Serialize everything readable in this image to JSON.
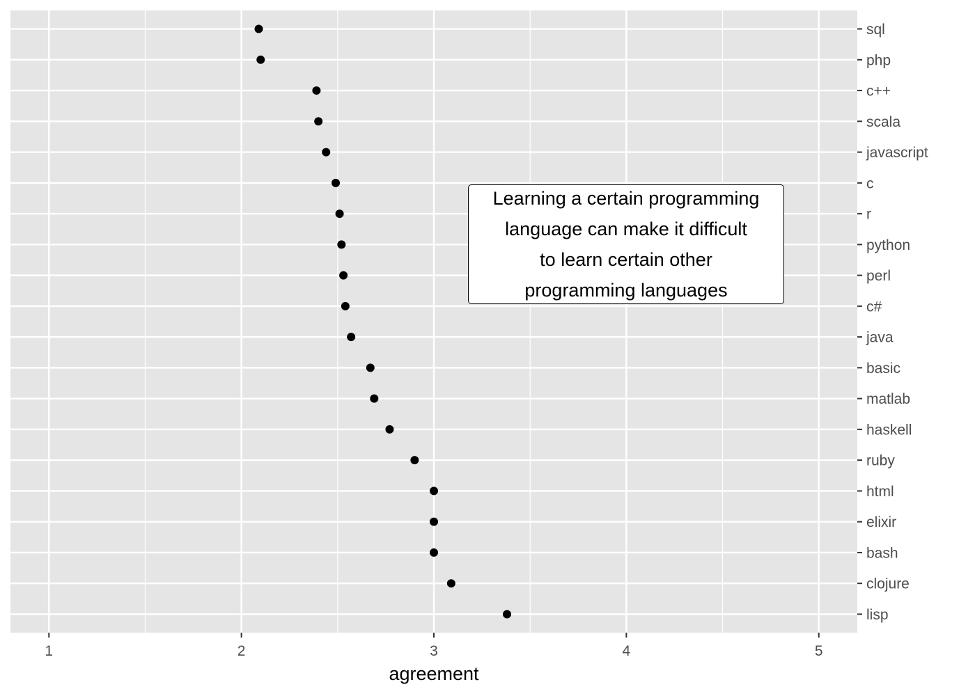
{
  "chart_data": {
    "type": "scatter",
    "title": "",
    "xlabel": "agreement",
    "ylabel": "",
    "xlim": [
      0.8,
      5.2
    ],
    "xticks": [
      "1",
      "2",
      "3",
      "4",
      "5"
    ],
    "y_axis_position": "right",
    "grid": true,
    "categories": [
      "sql",
      "php",
      "c++",
      "scala",
      "javascript",
      "c",
      "r",
      "python",
      "perl",
      "c#",
      "java",
      "basic",
      "matlab",
      "haskell",
      "ruby",
      "html",
      "elixir",
      "bash",
      "clojure",
      "lisp"
    ],
    "values": [
      2.09,
      2.1,
      2.39,
      2.4,
      2.44,
      2.49,
      2.51,
      2.52,
      2.53,
      2.54,
      2.57,
      2.67,
      2.69,
      2.77,
      2.9,
      3.0,
      3.0,
      3.0,
      3.09,
      3.38
    ],
    "annotation": "Learning a certain programming\nlanguage can make it difficult\nto learn certain other\nprogramming languages"
  },
  "colors": {
    "panel": "#e5e5e5",
    "grid": "#ffffff",
    "point": "#000000",
    "tick_text": "#4d4d4d"
  }
}
